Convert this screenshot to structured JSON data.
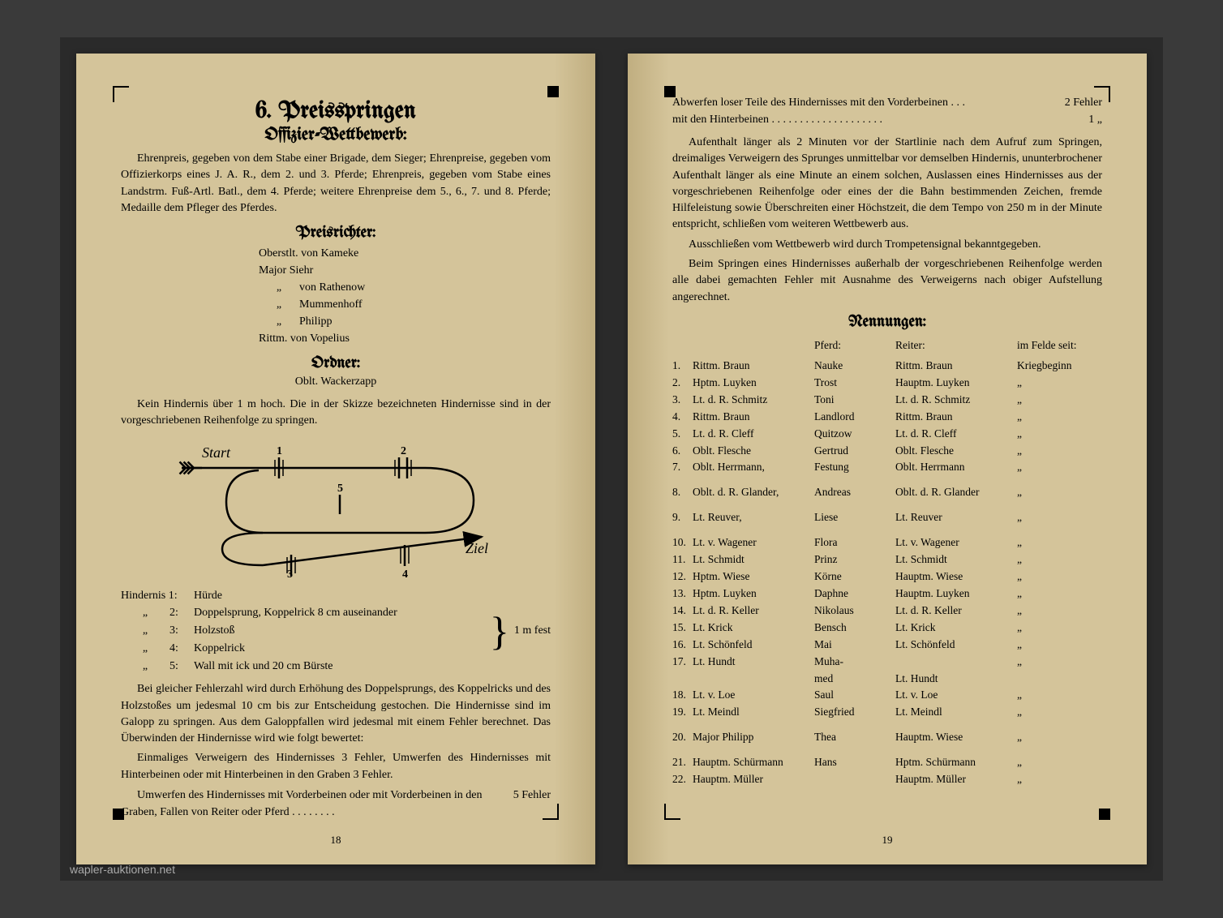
{
  "left": {
    "title": "6. Preisspringen",
    "subtitle": "Offizier-Wettbewerb:",
    "intro": "Ehrenpreis, gegeben von dem Stabe einer Brigade, dem Sieger; Ehrenpreise, gegeben vom Offizierkorps eines J. A. R., dem 2. und 3. Pferde; Ehrenpreis, gegeben vom Stabe eines Landstrm. Fuß-Artl. Batl., dem 4. Pferde; weitere Ehrenpreise dem 5., 6., 7. und 8. Pferde; Medaille dem Pfleger des Pferdes.",
    "judges_heading": "Preisrichter:",
    "judges": [
      "Oberstlt. von Kameke",
      "Major Siehr",
      "von Rathenow",
      "Mummenhoff",
      "Philipp",
      "Rittm. von Vopelius"
    ],
    "ordner_heading": "Ordner:",
    "ordner": "Oblt. Wackerzapp",
    "rules1": "Kein Hindernis über 1 m hoch. Die in der Skizze bezeichneten Hindernisse sind in der vorgeschriebenen Reihenfolge zu springen.",
    "diagram": {
      "start_label": "Start",
      "ziel_label": "Ziel",
      "numbers": [
        "1",
        "2",
        "3",
        "4",
        "5"
      ]
    },
    "obstacles_label": "Hindernis",
    "obstacles": [
      {
        "n": "1:",
        "text": "Hürde"
      },
      {
        "n": "2:",
        "text": "Doppelsprung, Koppelrick 8 cm auseinander"
      },
      {
        "n": "3:",
        "text": "Holzstoß"
      },
      {
        "n": "4:",
        "text": "Koppelrick"
      },
      {
        "n": "5:",
        "text": "Wall mit ick und 20 cm Bürste"
      }
    ],
    "brace_label": "1 m fest",
    "rules2": "Bei gleicher Fehlerzahl wird durch Erhöhung des Doppelsprungs, des Koppelricks und des Holzstoßes um jedesmal 10 cm bis zur Entscheidung gestochen. Die Hindernisse sind im Galopp zu springen. Aus dem Galoppfallen wird jedesmal mit einem Fehler berechnet. Das Überwinden der Hindernisse wird wie folgt bewertet:",
    "rules3": "Einmaliges Verweigern des Hindernisses 3 Fehler, Umwerfen des Hindernisses mit Hinterbeinen oder mit Hinterbeinen in den Graben 3 Fehler.",
    "rules4": "Umwerfen des Hindernisses mit Vorderbeinen oder mit Vorderbeinen in den Graben, Fallen von Reiter oder Pferd",
    "rules4_value": "5 Fehler",
    "page_number": "18"
  },
  "right": {
    "line1_text": "Abwerfen loser Teile des Hindernisses mit den Vorderbeinen",
    "line1_value": "2 Fehler",
    "line2_text": "mit den Hinterbeinen",
    "line2_value": "1   „",
    "para1": "Aufenthalt länger als 2 Minuten vor der Startlinie nach dem Aufruf zum Springen, dreimaliges Verweigern des Sprunges unmittelbar vor demselben Hindernis, ununterbrochener Aufenthalt länger als eine Minute an einem solchen, Auslassen eines Hindernisses aus der vorgeschriebenen Reihenfolge oder eines der die Bahn bestimmenden Zeichen, fremde Hilfeleistung sowie Überschreiten einer Höchstzeit, die dem Tempo von 250 m in der Minute entspricht, schließen vom weiteren Wettbewerb aus.",
    "para2": "Ausschließen vom Wettbewerb wird durch Trompetensignal bekanntgegeben.",
    "para3": "Beim Springen eines Hindernisses außerhalb der vorgeschriebenen Reihenfolge werden alle dabei gemachten Fehler mit Ausnahme des Verweigerns nach obiger Aufstellung angerechnet.",
    "entries_heading": "Nennungen:",
    "header": {
      "horse": "Pferd:",
      "rider": "Reiter:",
      "since": "im Felde seit:"
    },
    "first_since": "Kriegbeginn",
    "entries": [
      {
        "n": "1.",
        "name": "Rittm. Braun",
        "horse": "Nauke",
        "rider": "Rittm. Braun"
      },
      {
        "n": "2.",
        "name": "Hptm. Luyken",
        "horse": "Trost",
        "rider": "Hauptm. Luyken"
      },
      {
        "n": "3.",
        "name": "Lt. d. R. Schmitz",
        "horse": "Toni",
        "rider": "Lt. d. R. Schmitz"
      },
      {
        "n": "4.",
        "name": "Rittm. Braun",
        "horse": "Landlord",
        "rider": "Rittm. Braun"
      },
      {
        "n": "5.",
        "name": "Lt. d. R. Cleff",
        "horse": "Quitzow",
        "rider": "Lt. d. R. Cleff"
      },
      {
        "n": "6.",
        "name": "Oblt. Flesche",
        "horse": "Gertrud",
        "rider": "Oblt. Flesche"
      },
      {
        "n": "7.",
        "name": "Oblt. Herrmann,",
        "horse": "Festung",
        "rider": "Oblt. Herrmann"
      },
      {
        "n": "8.",
        "name": "Oblt. d. R. Glander,",
        "horse": "Andreas",
        "rider": "Oblt. d. R. Glander"
      },
      {
        "n": "9.",
        "name": "Lt. Reuver,",
        "horse": "Liese",
        "rider": "Lt. Reuver"
      },
      {
        "n": "10.",
        "name": "Lt. v. Wagener",
        "horse": "Flora",
        "rider": "Lt. v. Wagener"
      },
      {
        "n": "11.",
        "name": "Lt. Schmidt",
        "horse": "Prinz",
        "rider": "Lt. Schmidt"
      },
      {
        "n": "12.",
        "name": "Hptm. Wiese",
        "horse": "Körne",
        "rider": "Hauptm. Wiese"
      },
      {
        "n": "13.",
        "name": "Hptm. Luyken",
        "horse": "Daphne",
        "rider": "Hauptm. Luyken"
      },
      {
        "n": "14.",
        "name": "Lt. d. R. Keller",
        "horse": "Nikolaus",
        "rider": "Lt. d. R. Keller"
      },
      {
        "n": "15.",
        "name": "Lt. Krick",
        "horse": "Bensch",
        "rider": "Lt. Krick"
      },
      {
        "n": "16.",
        "name": "Lt. Schönfeld",
        "horse": "Mai",
        "rider": "Lt. Schönfeld"
      },
      {
        "n": "17.",
        "name": "Lt. Hundt",
        "horse": "Muha-",
        "rider": ""
      },
      {
        "n": "",
        "name": "",
        "horse": "med",
        "rider": "Lt. Hundt"
      },
      {
        "n": "18.",
        "name": "Lt. v. Loe",
        "horse": "Saul",
        "rider": "Lt. v. Loe"
      },
      {
        "n": "19.",
        "name": "Lt. Meindl",
        "horse": "Siegfried",
        "rider": "Lt. Meindl"
      },
      {
        "n": "20.",
        "name": "Major Philipp",
        "horse": "Thea",
        "rider": "Hauptm. Wiese"
      },
      {
        "n": "21.",
        "name": "Hauptm. Schürmann",
        "horse": "Hans",
        "rider": "Hptm. Schürmann"
      },
      {
        "n": "22.",
        "name": "Hauptm. Müller",
        "horse": "",
        "rider": "Hauptm. Müller"
      }
    ],
    "gaps_after": [
      6,
      7,
      8,
      19,
      20
    ],
    "page_number": "19"
  },
  "watermark": "wapler-auktionen.net",
  "colors": {
    "paper": "#d4c49a",
    "ink": "#1a1a1a",
    "background": "#3a3a3a"
  }
}
